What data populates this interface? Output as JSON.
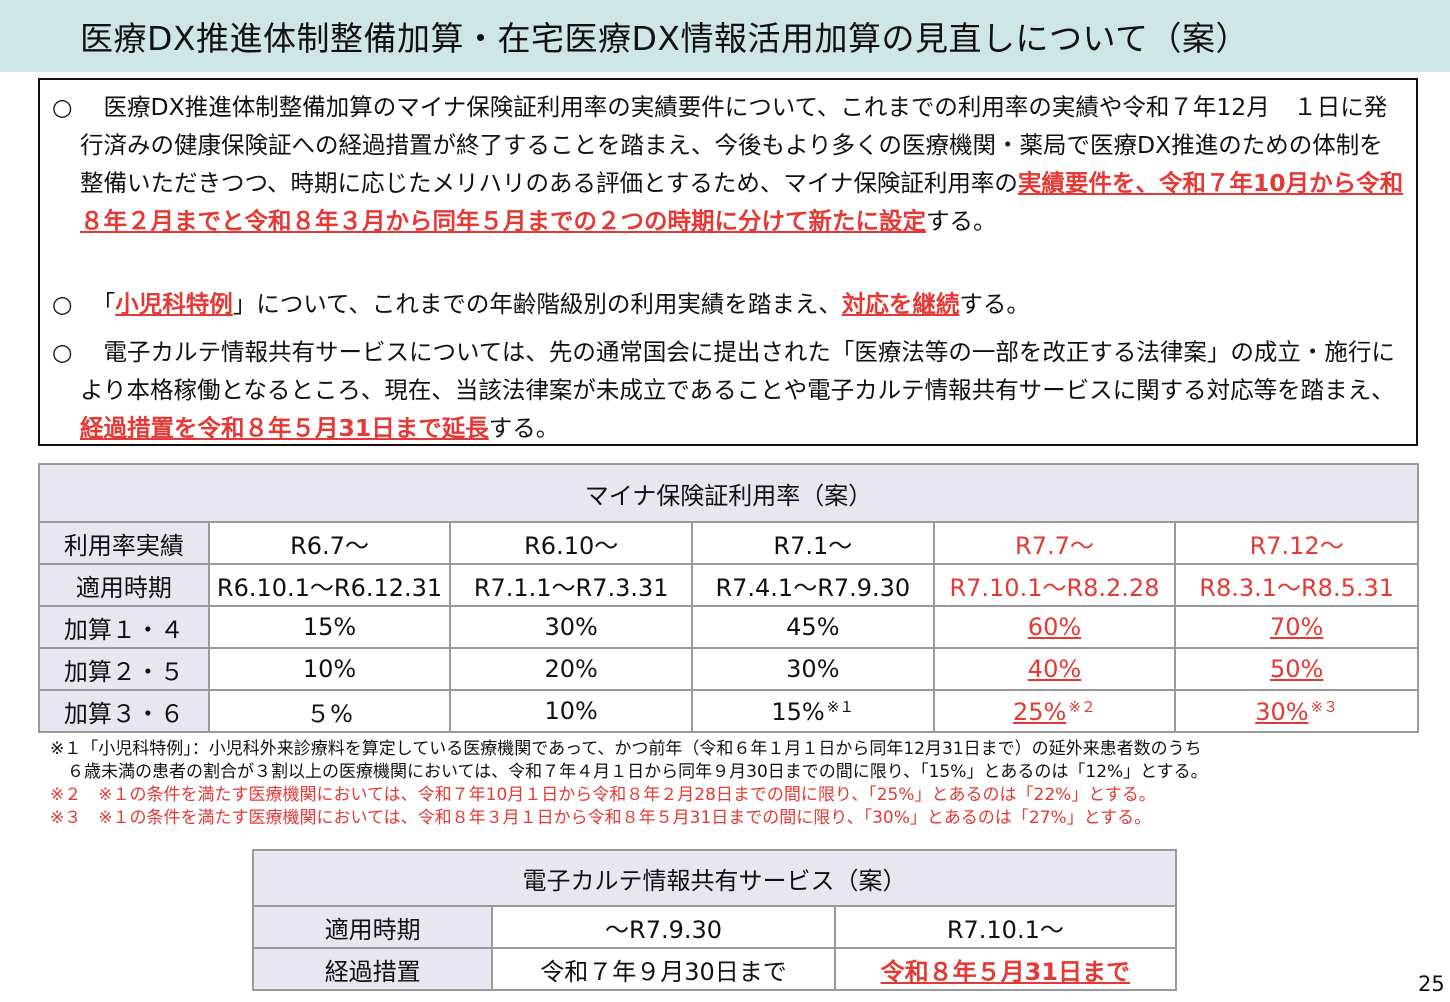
{
  "title": "医療DX推進体制整備加算・在宅医療DX情報活用加算の見直しについて（案）",
  "bullets": [
    {
      "mark": "○",
      "before": "　医療DX推進体制整備加算のマイナ保険証利用率の実績要件について、これまでの利用率の実績や令和７年12月　１日に発行済みの健康保険証への経過措置が終了することを踏まえ、今後もより多くの医療機関・薬局で医療DX推進のための体制を整備いただきつつ、時期に応じたメリハリのある評価とするため、マイナ保険証利用率の",
      "emph": "実績要件を、令和７年10月から令和８年２月までと令和８年３月から同年５月までの２つの時期に分けて新たに設定",
      "after": "する。"
    },
    {
      "mark": "○",
      "t1": "　「",
      "emph1": "小児科特例",
      "t2": "」について、これまでの年齢階級別の利用実績を踏まえ、",
      "emph2": "対応を継続",
      "t3": "する。"
    },
    {
      "mark": "○",
      "before": "　電子カルテ情報共有サービスについては、先の通常国会に提出された「医療法等の一部を改正する法律案」の成立・施行により本格稼働となるところ、現在、当該法律案が未成立であることや電子カルテ情報共有サービスに関する対応等を踏まえ、",
      "emph": "経過措置を令和８年５月31日まで延長",
      "after": "する。"
    }
  ],
  "table1": {
    "title": "マイナ保険証利用率（案）",
    "rows": [
      {
        "label": "利用率実績",
        "cells": [
          "R6.7～",
          "R6.10～",
          "R7.1～",
          "R7.7～",
          "R7.12～"
        ]
      },
      {
        "label": "適用時期",
        "cells": [
          "R6.10.1～R6.12.31",
          "R7.1.1～R7.3.31",
          "R7.4.1～R7.9.30",
          "R7.10.1～R8.2.28",
          "R8.3.1～R8.5.31"
        ]
      },
      {
        "label": "加算１・４",
        "cells": [
          "15%",
          "30%",
          "45%",
          "60%",
          "70%"
        ]
      },
      {
        "label": "加算２・５",
        "cells": [
          "10%",
          "20%",
          "30%",
          "40%",
          "50%"
        ]
      },
      {
        "label": "加算３・６",
        "cells": [
          "５%",
          "10%",
          "15%",
          "25%",
          "30%"
        ],
        "notes": [
          "",
          "",
          "※１",
          "※２",
          "※３"
        ]
      }
    ]
  },
  "footnotes": [
    "※１「小児科特例」：小児科外来診療料を算定している医療機関であって、かつ前年（令和６年１月１日から同年12月31日まで）の延外来患者数のうち",
    "　６歳未満の患者の割合が３割以上の医療機関においては、令和７年４月１日から同年９月30日までの間に限り、「15%」とあるのは「12%」とする。",
    "※２　※１の条件を満たす医療機関においては、令和７年10月１日から令和８年２月28日までの間に限り、「25%」とあるのは「22%」とする。",
    "※３　※１の条件を満たす医療機関においては、令和８年３月１日から令和８年５月31日までの間に限り、「30%」とあるのは「27%」とする。"
  ],
  "table2": {
    "title": "電子カルテ情報共有サービス（案）",
    "rows": [
      {
        "label": "適用時期",
        "cells": [
          "～R7.9.30",
          "R7.10.1～"
        ]
      },
      {
        "label": "経過措置",
        "cells": [
          "令和７年９月30日まで",
          "令和８年５月31日まで"
        ]
      }
    ]
  },
  "page_number": "25",
  "colors": {
    "accent_red": "#e53935",
    "title_bg": "#cfe6e6",
    "table_header_bg": "#e8e6f0"
  }
}
